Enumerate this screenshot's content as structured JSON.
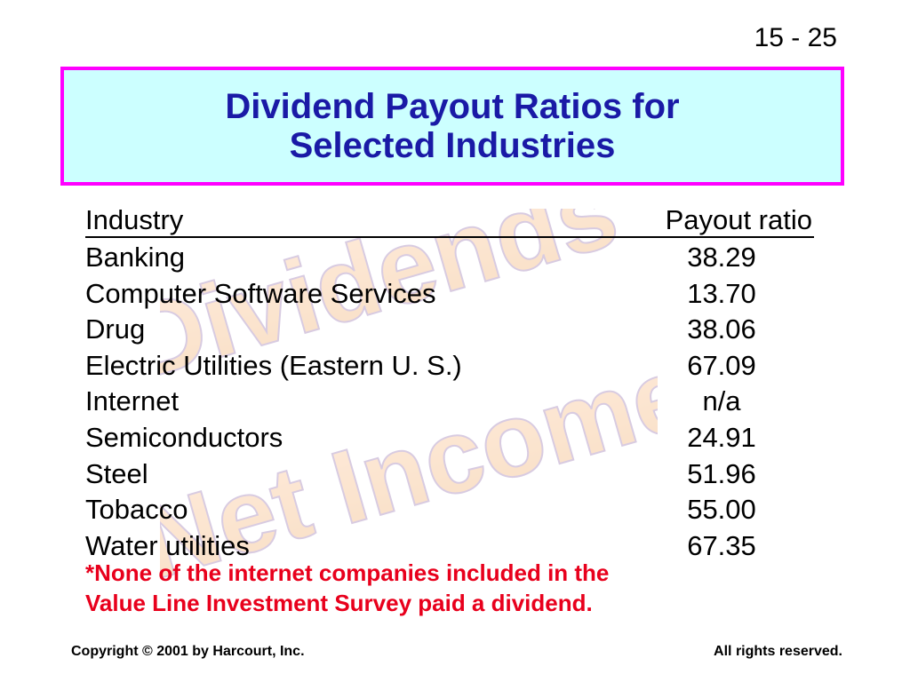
{
  "slide_number": "15 - 25",
  "title": {
    "line1": "Dividend Payout Ratios for",
    "line2": "Selected Industries"
  },
  "table": {
    "headers": {
      "industry": "Industry",
      "ratio": "Payout ratio"
    },
    "rows": [
      {
        "industry": "Banking",
        "ratio": "38.29"
      },
      {
        "industry": "Computer Software Services",
        "ratio": "13.70"
      },
      {
        "industry": "Drug",
        "ratio": "38.06"
      },
      {
        "industry": "Electric Utilities (Eastern U. S.)",
        "ratio": "67.09"
      },
      {
        "industry": "Internet",
        "ratio": "n/a"
      },
      {
        "industry": "Semiconductors",
        "ratio": "24.91"
      },
      {
        "industry": "Steel",
        "ratio": "51.96"
      },
      {
        "industry": "Tobacco",
        "ratio": "55.00"
      },
      {
        "industry": "Water utilities",
        "ratio": "67.35"
      }
    ]
  },
  "note": {
    "line1": "*None of the internet companies included in the",
    "line2": "Value Line Investment Survey paid a dividend."
  },
  "footer": {
    "left": "Copyright © 2001 by Harcourt, Inc.",
    "right": "All rights reserved."
  },
  "watermark": {
    "word1": "Dividends",
    "word2": "Net Income"
  },
  "colors": {
    "title_text": "#1a1aa6",
    "title_border": "#ff00ff",
    "title_background": "#ccffff",
    "note_text": "#e8001c"
  }
}
